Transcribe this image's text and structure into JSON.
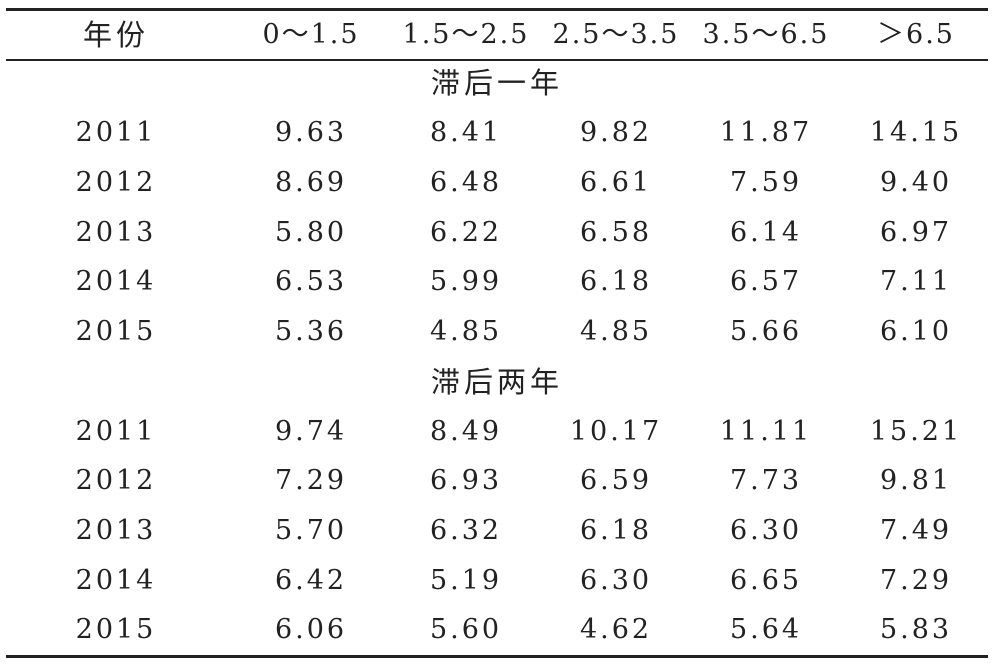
{
  "table": {
    "headers": [
      "年份",
      "0～1.5",
      "1.5～2.5",
      "2.5～3.5",
      "3.5～6.5",
      "＞6.5"
    ],
    "sections": [
      {
        "title": "滞后一年",
        "rows": [
          [
            "2011",
            "9.63",
            "8.41",
            "9.82",
            "11.87",
            "14.15"
          ],
          [
            "2012",
            "8.69",
            "6.48",
            "6.61",
            "7.59",
            "9.40"
          ],
          [
            "2013",
            "5.80",
            "6.22",
            "6.58",
            "6.14",
            "6.97"
          ],
          [
            "2014",
            "6.53",
            "5.99",
            "6.18",
            "6.57",
            "7.11"
          ],
          [
            "2015",
            "5.36",
            "4.85",
            "4.85",
            "5.66",
            "6.10"
          ]
        ]
      },
      {
        "title": "滞后两年",
        "rows": [
          [
            "2011",
            "9.74",
            "8.49",
            "10.17",
            "11.11",
            "15.21"
          ],
          [
            "2012",
            "7.29",
            "6.93",
            "6.59",
            "7.73",
            "9.81"
          ],
          [
            "2013",
            "5.70",
            "6.32",
            "6.18",
            "6.30",
            "7.49"
          ],
          [
            "2014",
            "6.42",
            "5.19",
            "6.30",
            "6.65",
            "7.29"
          ],
          [
            "2015",
            "6.06",
            "5.60",
            "4.62",
            "5.64",
            "5.83"
          ]
        ]
      }
    ]
  }
}
